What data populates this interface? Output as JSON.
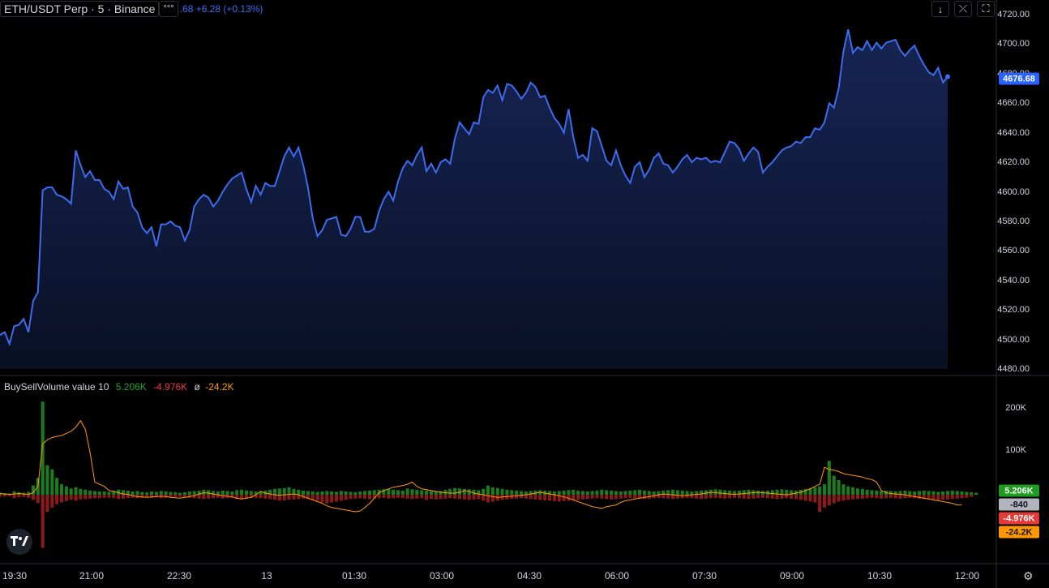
{
  "header": {
    "symbol": "ETH/USDT Perp · 5 · Binance",
    "dots": "°°°",
    "ohlc_text": ".68 +6.28 (+0.13%)"
  },
  "toolbar": {
    "down_icon": "↓",
    "collapse_icon": "⤫",
    "fullscreen_icon": "⛶"
  },
  "price_axis": {
    "ticks": [
      "4720.00",
      "4700.00",
      "4680.00",
      "4660.00",
      "4640.00",
      "4620.00",
      "4600.00",
      "4580.00",
      "4560.00",
      "4540.00",
      "4520.00",
      "4500.00",
      "4480.00"
    ],
    "last_price": "4676.68",
    "last_color": "#2962ff"
  },
  "indicator": {
    "name": "BuySellVolume value 10",
    "buy": "5.206K",
    "sell": "-4.976K",
    "phi": "ø",
    "avg": "-24.2K",
    "buy_color": "#26a626",
    "sell_color": "#f23645",
    "avg_color": "#ff9800"
  },
  "volume_axis": {
    "ticks": [
      "200K",
      "100K"
    ],
    "badges": [
      {
        "label": "5.206K",
        "bg": "#1e9c1e",
        "fg": "#ffffff"
      },
      {
        "label": "-840",
        "bg": "#b2b5be",
        "fg": "#131722"
      },
      {
        "label": "-4.976K",
        "bg": "#e53935",
        "fg": "#ffffff"
      },
      {
        "label": "-24.2K",
        "bg": "#ff9800",
        "fg": "#131722"
      }
    ]
  },
  "time_axis": {
    "ticks": [
      "19:30",
      "21:00",
      "22:30",
      "13",
      "01:30",
      "03:00",
      "04:30",
      "06:00",
      "07:30",
      "09:00",
      "10:30",
      "12:00"
    ]
  },
  "chart_data": {
    "type": "area",
    "ylim": [
      4480,
      4720
    ],
    "line_color": "#3c6df0",
    "x_range": [
      "19:30",
      "12:00"
    ],
    "values": [
      4503,
      4505,
      4497,
      4509,
      4510,
      4514,
      4505,
      4526,
      4532,
      4601,
      4603,
      4603,
      4598,
      4597,
      4595,
      4592,
      4628,
      4618,
      4610,
      4614,
      4608,
      4608,
      4602,
      4600,
      4595,
      4607,
      4602,
      4603,
      4590,
      4586,
      4576,
      4572,
      4576,
      4563,
      4578,
      4578,
      4580,
      4577,
      4576,
      4567,
      4574,
      4590,
      4595,
      4598,
      4596,
      4590,
      4594,
      4600,
      4605,
      4609,
      4611,
      4613,
      4602,
      4593,
      4604,
      4598,
      4606,
      4604,
      4604,
      4614,
      4624,
      4630,
      4624,
      4630,
      4618,
      4603,
      4582,
      4570,
      4574,
      4581,
      4582,
      4583,
      4571,
      4570,
      4575,
      4583,
      4583,
      4573,
      4573,
      4575,
      4587,
      4595,
      4600,
      4594,
      4607,
      4616,
      4621,
      4618,
      4625,
      4630,
      4614,
      4619,
      4613,
      4620,
      4622,
      4619,
      4636,
      4647,
      4643,
      4639,
      4647,
      4646,
      4664,
      4669,
      4667,
      4672,
      4662,
      4673,
      4672,
      4668,
      4663,
      4667,
      4674,
      4671,
      4664,
      4665,
      4657,
      4650,
      4646,
      4640,
      4656,
      4637,
      4623,
      4625,
      4621,
      4643,
      4641,
      4631,
      4621,
      4618,
      4628,
      4618,
      4611,
      4606,
      4617,
      4620,
      4610,
      4615,
      4623,
      4626,
      4619,
      4618,
      4613,
      4617,
      4622,
      4625,
      4620,
      4623,
      4622,
      4623,
      4620,
      4621,
      4620,
      4627,
      4634,
      4633,
      4629,
      4621,
      4626,
      4630,
      4627,
      4613,
      4617,
      4620,
      4624,
      4628,
      4630,
      4631,
      4634,
      4633,
      4637,
      4637,
      4643,
      4642,
      4647,
      4660,
      4657,
      4670,
      4695,
      4710,
      4694,
      4698,
      4696,
      4702,
      4696,
      4701,
      4697,
      4701,
      4702,
      4703,
      4696,
      4692,
      4696,
      4699,
      4692,
      4686,
      4681,
      4679,
      4684,
      4674,
      4678
    ],
    "volume": {
      "ylim": [
        -130000,
        230000
      ],
      "buy": [
        5000,
        4000,
        3000,
        8000,
        6000,
        5000,
        7000,
        22000,
        40000,
        220000,
        70000,
        60000,
        40000,
        25000,
        20000,
        15000,
        18000,
        14000,
        12000,
        10000,
        9000,
        8000,
        8000,
        7000,
        9000,
        12000,
        11000,
        10000,
        8000,
        9000,
        7000,
        6000,
        8000,
        7000,
        9000,
        8000,
        7000,
        6000,
        5000,
        6000,
        8000,
        9000,
        10000,
        12000,
        11000,
        9000,
        8000,
        10000,
        9000,
        8000,
        11000,
        12000,
        10000,
        9000,
        8000,
        9000,
        10000,
        12000,
        14000,
        15000,
        16000,
        18000,
        14000,
        12000,
        10000,
        9000,
        8000,
        7000,
        8000,
        9000,
        8000,
        7000,
        9000,
        8000,
        7000,
        6000,
        8000,
        9000,
        10000,
        11000,
        12000,
        13000,
        14000,
        12000,
        11000,
        10000,
        15000,
        13000,
        12000,
        11000,
        10000,
        9000,
        8000,
        9000,
        12000,
        14000,
        16000,
        15000,
        14000,
        13000,
        12000,
        11000,
        14000,
        22000,
        18000,
        16000,
        14000,
        12000,
        11000,
        10000,
        9000,
        8000,
        9000,
        10000,
        11000,
        10000,
        9000,
        8000,
        9000,
        10000,
        11000,
        12000,
        10000,
        9000,
        8000,
        9000,
        10000,
        12000,
        11000,
        10000,
        9000,
        8000,
        9000,
        10000,
        11000,
        12000,
        10000,
        9000,
        8000,
        9000,
        10000,
        11000,
        12000,
        11000,
        10000,
        9000,
        8000,
        9000,
        10000,
        11000,
        12000,
        13000,
        12000,
        11000,
        10000,
        9000,
        10000,
        11000,
        12000,
        11000,
        10000,
        9000,
        10000,
        11000,
        12000,
        13000,
        12000,
        11000,
        10000,
        12000,
        14000,
        16000,
        18000,
        20000,
        25000,
        80000,
        45000,
        35000,
        25000,
        20000,
        18000,
        15000,
        14000,
        12000,
        11000,
        10000,
        9000,
        10000,
        9000,
        8000,
        9000,
        10000,
        9000,
        8000,
        9000,
        10000,
        9000,
        8000,
        7000,
        8000,
        9000,
        10000,
        9000,
        8000,
        7000,
        6000,
        5000
      ],
      "sell": [
        -5000,
        -4000,
        -3000,
        -8000,
        -6000,
        -5000,
        -7000,
        -12000,
        -20000,
        -125000,
        -40000,
        -30000,
        -22000,
        -18000,
        -15000,
        -12000,
        -14000,
        -11000,
        -10000,
        -9000,
        -8000,
        -8000,
        -7000,
        -7000,
        -8000,
        -10000,
        -9000,
        -8000,
        -7000,
        -8000,
        -7000,
        -6000,
        -7000,
        -6000,
        -8000,
        -7000,
        -6000,
        -5000,
        -5000,
        -6000,
        -7000,
        -8000,
        -9000,
        -10000,
        -9000,
        -8000,
        -7000,
        -9000,
        -8000,
        -7000,
        -10000,
        -11000,
        -9000,
        -8000,
        -7000,
        -8000,
        -9000,
        -10000,
        -12000,
        -14000,
        -13000,
        -12000,
        -11000,
        -10000,
        -9000,
        -10000,
        -12000,
        -14000,
        -18000,
        -20000,
        -18000,
        -16000,
        -14000,
        -12000,
        -10000,
        -9000,
        -8000,
        -9000,
        -10000,
        -9000,
        -8000,
        -7000,
        -9000,
        -8000,
        -7000,
        -8000,
        -9000,
        -10000,
        -9000,
        -8000,
        -12000,
        -10000,
        -11000,
        -10000,
        -9000,
        -8000,
        -9000,
        -10000,
        -11000,
        -12000,
        -11000,
        -10000,
        -14000,
        -18000,
        -16000,
        -14000,
        -12000,
        -11000,
        -10000,
        -9000,
        -8000,
        -9000,
        -10000,
        -11000,
        -12000,
        -13000,
        -14000,
        -15000,
        -16000,
        -15000,
        -14000,
        -13000,
        -12000,
        -11000,
        -10000,
        -9000,
        -8000,
        -9000,
        -10000,
        -11000,
        -10000,
        -9000,
        -8000,
        -7000,
        -8000,
        -9000,
        -10000,
        -9000,
        -8000,
        -7000,
        -8000,
        -9000,
        -10000,
        -9000,
        -8000,
        -7000,
        -8000,
        -9000,
        -10000,
        -9000,
        -8000,
        -7000,
        -8000,
        -9000,
        -8000,
        -7000,
        -8000,
        -9000,
        -10000,
        -9000,
        -8000,
        -7000,
        -8000,
        -9000,
        -10000,
        -9000,
        -8000,
        -9000,
        -10000,
        -12000,
        -14000,
        -16000,
        -18000,
        -40000,
        -30000,
        -25000,
        -20000,
        -16000,
        -14000,
        -12000,
        -11000,
        -10000,
        -9000,
        -8000,
        -7000,
        -8000,
        -9000,
        -8000,
        -7000,
        -8000,
        -9000,
        -8000,
        -7000,
        -8000,
        -9000,
        -10000,
        -11000,
        -12000,
        -13000,
        -12000,
        -11000,
        -10000,
        -9000,
        -8000,
        -7000,
        -5000
      ],
      "avg": [
        3000,
        2000,
        1000,
        2000,
        3000,
        2000,
        1000,
        5000,
        20000,
        120000,
        130000,
        135000,
        138000,
        140000,
        145000,
        150000,
        160000,
        175000,
        155000,
        100000,
        30000,
        25000,
        20000,
        10000,
        8000,
        5000,
        2000,
        1000,
        -2000,
        -4000,
        -5000,
        -6000,
        -5000,
        -4000,
        -3000,
        -4000,
        -6000,
        -7000,
        -8000,
        -6000,
        -4000,
        -2000,
        2000,
        5000,
        4000,
        2000,
        0,
        -2000,
        -3000,
        -5000,
        -8000,
        -10000,
        -8000,
        -6000,
        0,
        8000,
        4000,
        2000,
        0,
        -1000,
        0,
        1000,
        2000,
        0,
        -4000,
        -8000,
        -12000,
        -16000,
        -20000,
        -26000,
        -30000,
        -32000,
        -34000,
        -36000,
        -38000,
        -40000,
        -38000,
        -30000,
        -20000,
        -8000,
        5000,
        10000,
        14000,
        18000,
        20000,
        22000,
        25000,
        30000,
        20000,
        14000,
        12000,
        10000,
        8000,
        6000,
        5000,
        4000,
        4000,
        6000,
        10000,
        8000,
        4000,
        2000,
        0,
        -2000,
        -4000,
        -6000,
        -5000,
        -4000,
        -3000,
        -2000,
        -1000,
        0,
        2000,
        4000,
        6000,
        4000,
        2000,
        0,
        -2000,
        -5000,
        -8000,
        -12000,
        -16000,
        -20000,
        -24000,
        -28000,
        -30000,
        -32000,
        -28000,
        -26000,
        -24000,
        -18000,
        -14000,
        -12000,
        -10000,
        -8000,
        -6000,
        -4000,
        -2000,
        0,
        2000,
        1000,
        0,
        -1000,
        -2000,
        -1000,
        0,
        1000,
        2000,
        4000,
        6000,
        5000,
        4000,
        3000,
        2000,
        1000,
        2000,
        3000,
        4000,
        5000,
        6000,
        5000,
        4000,
        3000,
        2000,
        1000,
        0,
        2000,
        4000,
        6000,
        10000,
        14000,
        20000,
        25000,
        65000,
        60000,
        58000,
        55000,
        50000,
        48000,
        46000,
        44000,
        42000,
        38000,
        36000,
        30000,
        10000,
        5000,
        3000,
        2000,
        1000,
        0,
        -2000,
        -4000,
        -6000,
        -8000,
        -10000,
        -12000,
        -14000,
        -16000,
        -18000,
        -20000,
        -24000,
        -24000
      ]
    }
  }
}
